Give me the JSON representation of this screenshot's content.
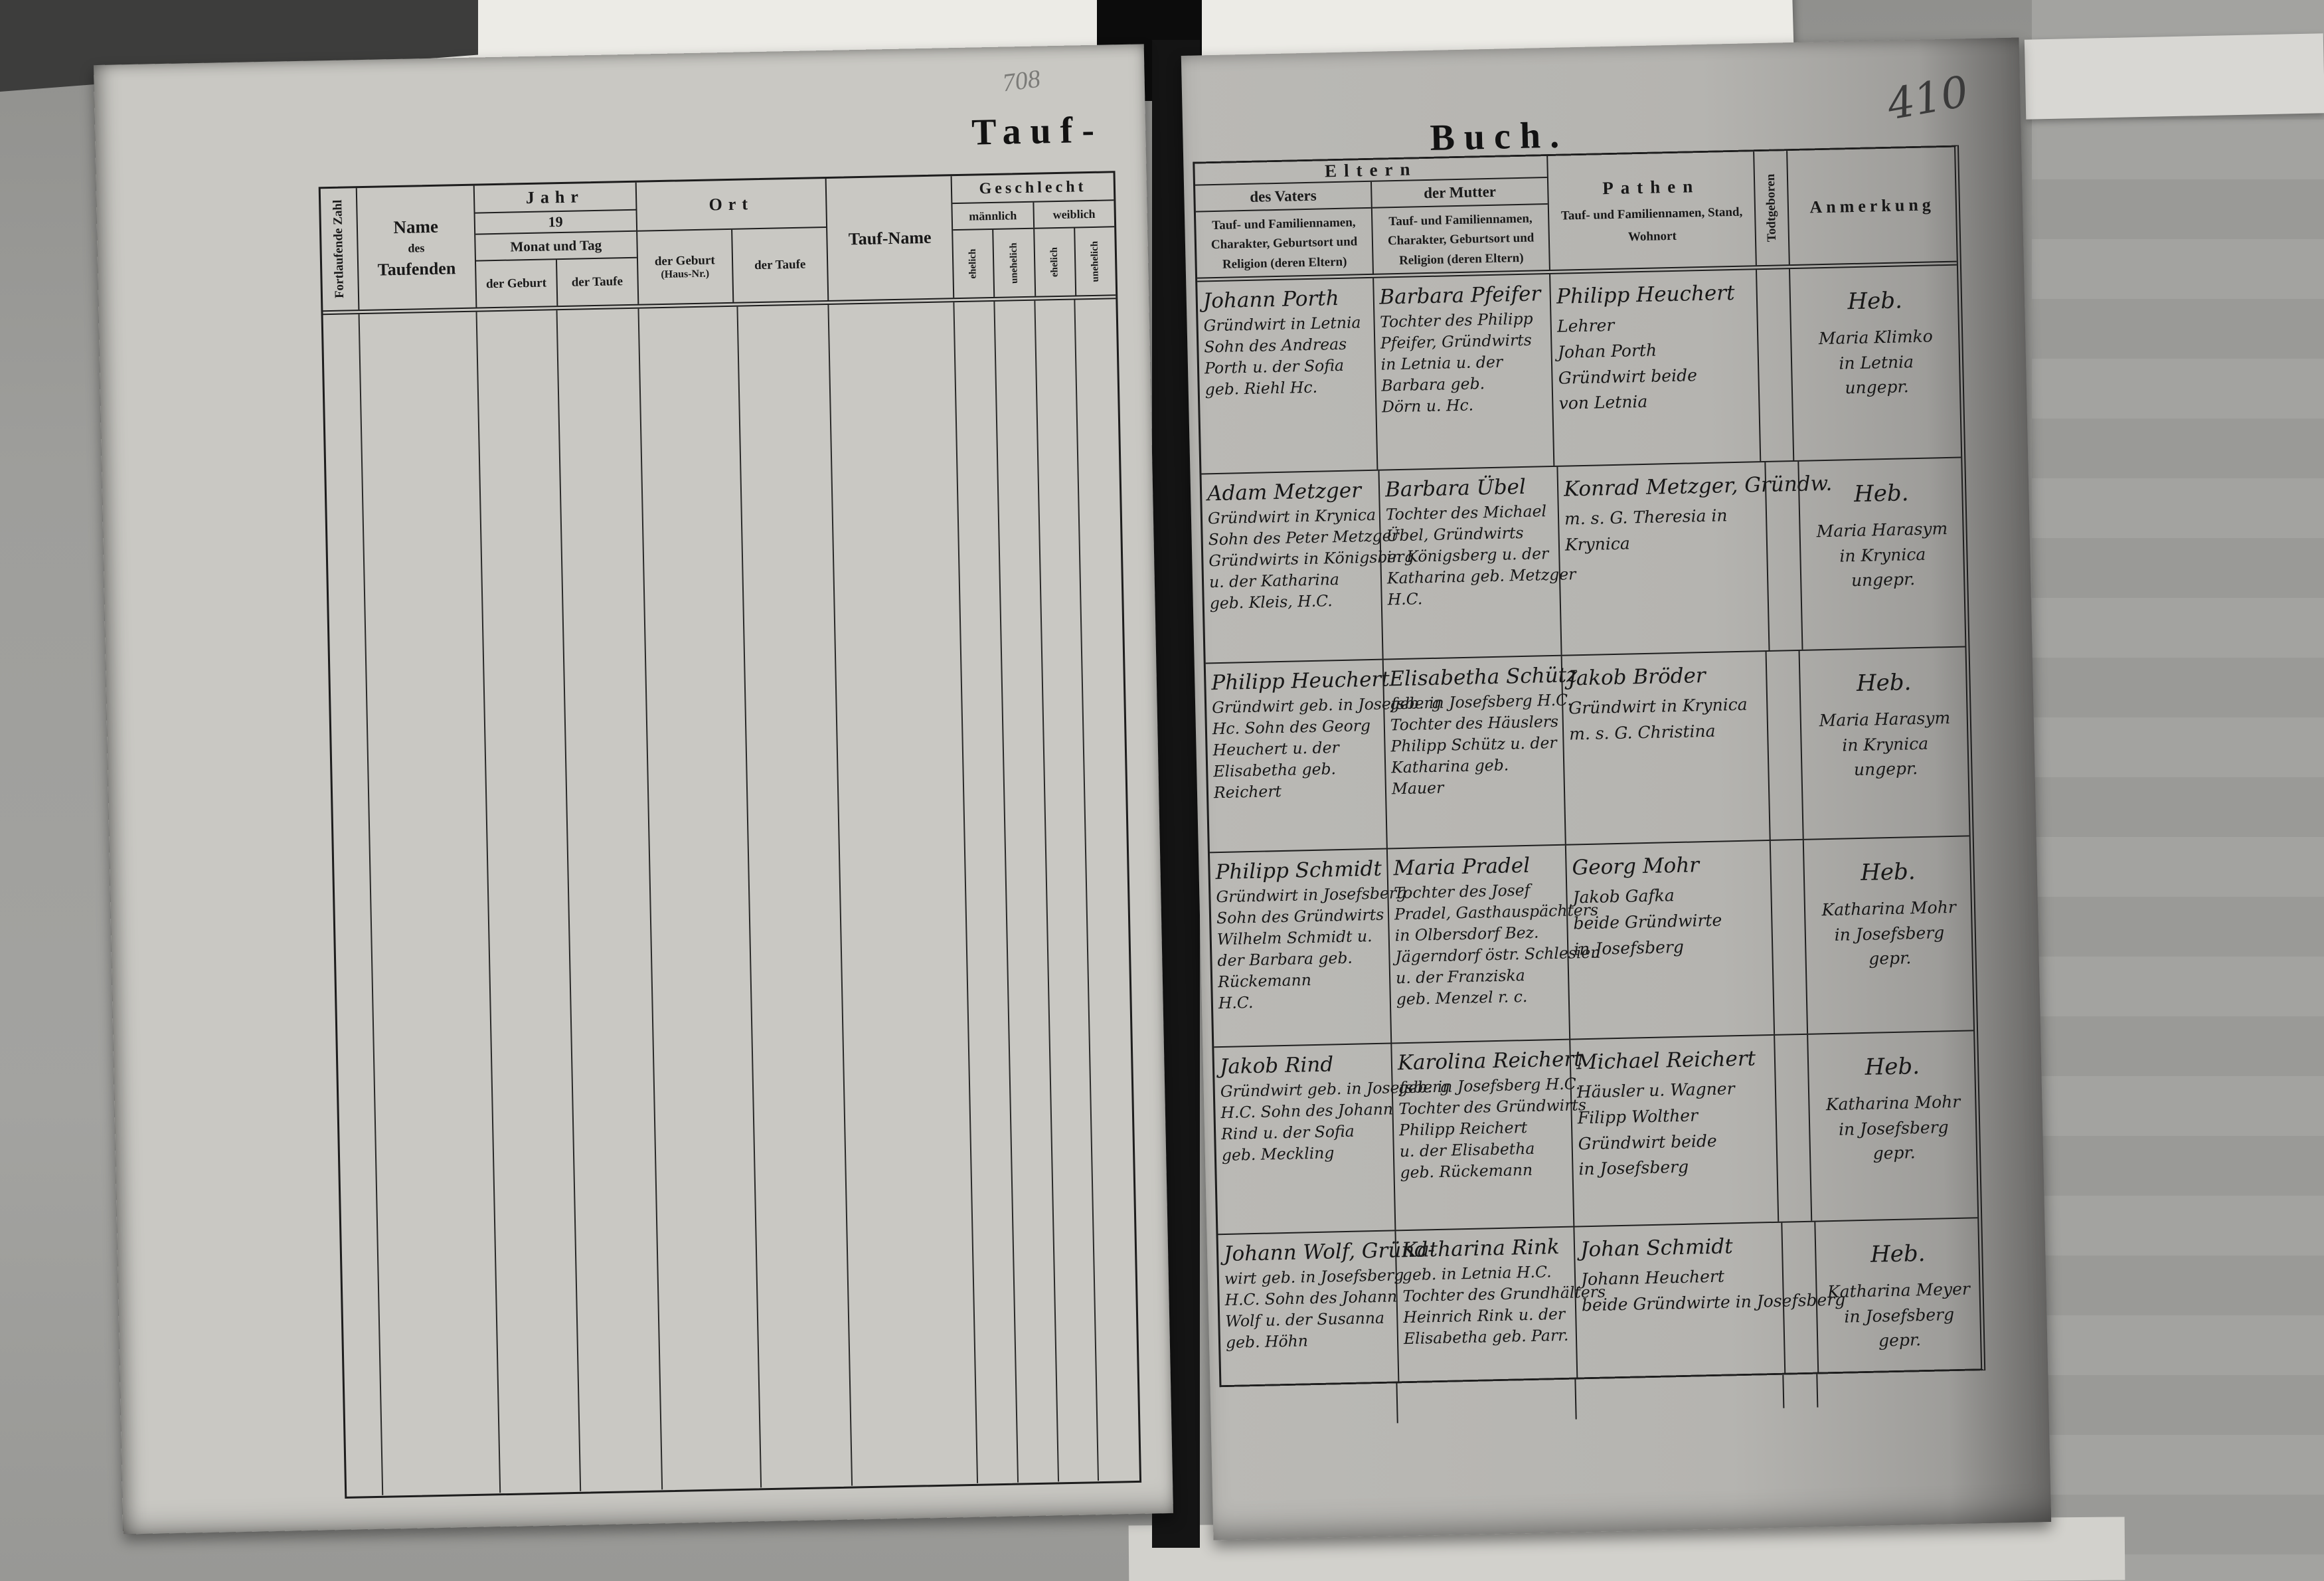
{
  "page_left": {
    "title": "Tauf-",
    "faint_mark": "708",
    "table": {
      "col_serial": "Fortlaufende Zahl",
      "name_line1": "Name",
      "name_line2": "des",
      "name_line3": "Taufenden",
      "jahr": "Jahr",
      "jahr_year": "19",
      "monat_und_tag": "Monat und Tag",
      "der_geburt": "der Geburt",
      "der_taufe": "der Taufe",
      "ort": "Ort",
      "ort_geburt_line1": "der Geburt",
      "ort_geburt_line2": "(Haus-Nr.)",
      "ort_taufe": "der Taufe",
      "tauf_name": "Tauf-Name",
      "geschlecht": "Geschlecht",
      "maennlich": "männlich",
      "weiblich": "weiblich",
      "ehelich": "ehelich",
      "unehelich": "unehelich"
    }
  },
  "page_right": {
    "title": "Buch.",
    "page_number": "410",
    "table": {
      "eltern": "Eltern",
      "des_vaters": "des Vaters",
      "der_mutter": "der Mutter",
      "eltern_sub1": "Tauf- und Familiennamen,",
      "eltern_sub2": "Charakter, Geburtsort und",
      "eltern_sub3": "Religion (deren Eltern)",
      "pathen": "Pathen",
      "pathen_sub1": "Tauf- und Familiennamen, Stand,",
      "pathen_sub2": "Wohnort",
      "todtgeboren": "Todtgeboren",
      "anmerkung": "Anmerkung"
    },
    "entries": [
      {
        "father": [
          "Johann Porth",
          "Gründwirt in Letnia",
          "Sohn des Andreas",
          "Porth u. der Sofia",
          "geb. Riehl Hc."
        ],
        "mother": [
          "Barbara Pfeifer",
          "Tochter des Philipp",
          "Pfeifer, Gründwirts",
          "in Letnia u. der",
          "Barbara geb.",
          "Dörn u. Hc."
        ],
        "godparents": [
          "Philipp Heuchert",
          "Lehrer",
          "Johan Porth",
          "Gründwirt beide",
          "von Letnia"
        ],
        "note": [
          "Heb.",
          "Maria Klimko",
          "in Letnia",
          "ungepr."
        ]
      },
      {
        "father": [
          "Adam Metzger",
          "Gründwirt in Krynica",
          "Sohn des Peter Metzger",
          "Gründwirts in Königsberg",
          "u. der Katharina",
          "geb. Kleis, H.C."
        ],
        "mother": [
          "Barbara Übel",
          "Tochter des Michael",
          "Übel, Gründwirts",
          "in Königsberg u. der",
          "Katharina geb. Metzger",
          "H.C."
        ],
        "godparents": [
          "Konrad Metzger, Gründw.",
          "m. s. G. Theresia in",
          "Krynica"
        ],
        "note": [
          "Heb.",
          "Maria Harasym",
          "in Krynica ungepr."
        ]
      },
      {
        "father": [
          "Philipp Heuchert",
          "Gründwirt geb. in Josefsberg",
          "Hc. Sohn des Georg",
          "Heuchert u. der",
          "Elisabetha geb.",
          "Reichert"
        ],
        "mother": [
          "Elisabetha Schütz",
          "geb. in Josefsberg H.C.",
          "Tochter des Häuslers",
          "Philipp Schütz u. der",
          "Katharina geb.",
          "Mauer"
        ],
        "godparents": [
          "Jakob Bröder",
          "Gründwirt in Krynica",
          "m. s. G. Christina"
        ],
        "note": [
          "Heb.",
          "Maria Harasym",
          "in Krynica",
          "ungepr."
        ]
      },
      {
        "father": [
          "Philipp Schmidt",
          "Gründwirt in Josefsberg",
          "Sohn des Gründwirts",
          "Wilhelm Schmidt u.",
          "der Barbara geb.",
          "Rückemann",
          "H.C."
        ],
        "mother": [
          "Maria Pradel",
          "Tochter des Josef",
          "Pradel, Gasthauspächters",
          "in Olbersdorf Bez.",
          "Jägerndorf östr. Schlesien",
          "u. der Franziska",
          "geb. Menzel r. c."
        ],
        "godparents": [
          "Georg Mohr",
          "Jakob Gafka",
          "beide Gründwirte",
          "in Josefsberg"
        ],
        "note": [
          "Heb.",
          "Katharina Mohr",
          "in Josefsberg gepr."
        ]
      },
      {
        "father": [
          "Jakob Rind",
          "Gründwirt geb. in Josefsberg",
          "H.C. Sohn des Johann",
          "Rind u. der Sofia",
          "geb. Meckling"
        ],
        "mother": [
          "Karolina Reichert",
          "geb. in Josefsberg H.C.",
          "Tochter des Gründwirts",
          "Philipp Reichert",
          "u. der Elisabetha",
          "geb. Rückemann"
        ],
        "godparents": [
          "Michael Reichert",
          "Häusler u. Wagner",
          "Filipp Wolther",
          "Gründwirt beide",
          "in Josefsberg"
        ],
        "note": [
          "Heb.",
          "Katharina Mohr",
          "in Josefsberg",
          "gepr."
        ]
      },
      {
        "father": [
          "Johann Wolf, Gründ-",
          "wirt geb. in Josefsberg",
          "H.C. Sohn des Johann",
          "Wolf u. der Susanna",
          "geb. Höhn"
        ],
        "mother": [
          "Katharina Rink",
          "geb. in Letnia H.C.",
          "Tochter des Grundhälters",
          "Heinrich Rink u. der",
          "Elisabetha geb. Parr."
        ],
        "godparents": [
          "Johan Schmidt",
          "Johann Heuchert",
          "beide Gründwirte in Josefsberg"
        ],
        "note": [
          "Heb.",
          "Katharina Meyer",
          "in Josefsberg gepr."
        ]
      }
    ]
  }
}
